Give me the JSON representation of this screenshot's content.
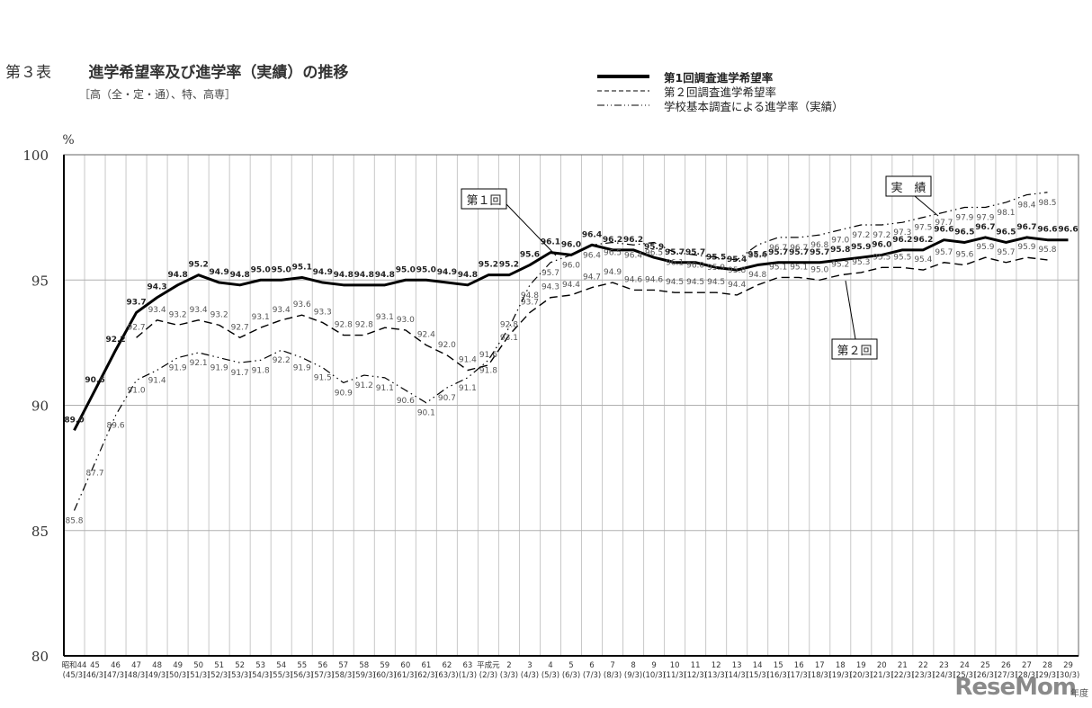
{
  "header": {
    "table_number": "第３表",
    "title": "進学希望率及び進学率（実績）の推移",
    "subtitle": "［高（全・定・通）、特、高専］"
  },
  "legend": [
    {
      "label": "第1回調査進学希望率",
      "style": "solid-bold"
    },
    {
      "label": "第２回調査進学希望率",
      "style": "dashed"
    },
    {
      "label": "学校基本調査による進学率（実績）",
      "style": "dash-dot"
    }
  ],
  "annotations": {
    "first_survey": "第１回",
    "second_survey": "第２回",
    "actual": "実　績"
  },
  "footer": {
    "logo": "ReseMom",
    "unit_label": "年度"
  },
  "chart_data": {
    "type": "line",
    "title": "進学希望率及び進学率（実績）の推移",
    "subtitle": "［高（全・定・通）、特、高専］",
    "xlabel": "年度",
    "ylabel": "%",
    "ylim": [
      80,
      100
    ],
    "yticks": [
      80,
      85,
      90,
      95,
      100
    ],
    "grid": true,
    "legend_position": "top-right",
    "categories": [
      {
        "top": "昭和44",
        "bottom": "(45/3)"
      },
      {
        "top": "45",
        "bottom": "(46/3)"
      },
      {
        "top": "46",
        "bottom": "(47/3)"
      },
      {
        "top": "47",
        "bottom": "(48/3)"
      },
      {
        "top": "48",
        "bottom": "(49/3)"
      },
      {
        "top": "49",
        "bottom": "(50/3)"
      },
      {
        "top": "50",
        "bottom": "(51/3)"
      },
      {
        "top": "51",
        "bottom": "(52/3)"
      },
      {
        "top": "52",
        "bottom": "(53/3)"
      },
      {
        "top": "53",
        "bottom": "(54/3)"
      },
      {
        "top": "54",
        "bottom": "(55/3)"
      },
      {
        "top": "55",
        "bottom": "(56/3)"
      },
      {
        "top": "56",
        "bottom": "(57/3)"
      },
      {
        "top": "57",
        "bottom": "(58/3)"
      },
      {
        "top": "58",
        "bottom": "(59/3)"
      },
      {
        "top": "59",
        "bottom": "(60/3)"
      },
      {
        "top": "60",
        "bottom": "(61/3)"
      },
      {
        "top": "61",
        "bottom": "(62/3)"
      },
      {
        "top": "62",
        "bottom": "(63/3)"
      },
      {
        "top": "63",
        "bottom": "(1/3)"
      },
      {
        "top": "平成元",
        "bottom": "(2/3)"
      },
      {
        "top": "2",
        "bottom": "(3/3)"
      },
      {
        "top": "3",
        "bottom": "(4/3)"
      },
      {
        "top": "4",
        "bottom": "(5/3)"
      },
      {
        "top": "5",
        "bottom": "(6/3)"
      },
      {
        "top": "6",
        "bottom": "(7/3)"
      },
      {
        "top": "7",
        "bottom": "(8/3)"
      },
      {
        "top": "8",
        "bottom": "(9/3)"
      },
      {
        "top": "9",
        "bottom": "(10/3)"
      },
      {
        "top": "10",
        "bottom": "(11/3)"
      },
      {
        "top": "11",
        "bottom": "(12/3)"
      },
      {
        "top": "12",
        "bottom": "(13/3)"
      },
      {
        "top": "13",
        "bottom": "(14/3)"
      },
      {
        "top": "14",
        "bottom": "(15/3)"
      },
      {
        "top": "15",
        "bottom": "(16/3)"
      },
      {
        "top": "16",
        "bottom": "(17/3)"
      },
      {
        "top": "17",
        "bottom": "(18/3)"
      },
      {
        "top": "18",
        "bottom": "(19/3)"
      },
      {
        "top": "19",
        "bottom": "(20/3)"
      },
      {
        "top": "20",
        "bottom": "(21/3)"
      },
      {
        "top": "21",
        "bottom": "(22/3)"
      },
      {
        "top": "22",
        "bottom": "(23/3)"
      },
      {
        "top": "23",
        "bottom": "(24/3)"
      },
      {
        "top": "24",
        "bottom": "(25/3)"
      },
      {
        "top": "25",
        "bottom": "(26/3)"
      },
      {
        "top": "26",
        "bottom": "(27/3)"
      },
      {
        "top": "27",
        "bottom": "(28/3)"
      },
      {
        "top": "28",
        "bottom": "(29/3)"
      },
      {
        "top": "29",
        "bottom": "(30/3)"
      }
    ],
    "series": [
      {
        "name": "第1回調査進学希望率",
        "style": "solid-bold",
        "start_index": 0,
        "values": [
          89.0,
          90.6,
          92.2,
          93.7,
          94.3,
          94.8,
          95.2,
          94.9,
          94.8,
          95.0,
          95.0,
          95.1,
          94.9,
          94.8,
          94.8,
          94.8,
          95.0,
          95.0,
          94.9,
          94.8,
          95.2,
          95.2,
          95.6,
          96.1,
          96.0,
          96.4,
          96.2,
          96.2,
          95.9,
          95.7,
          95.7,
          95.5,
          95.4,
          95.6,
          95.7,
          95.7,
          95.7,
          95.8,
          95.9,
          96.0,
          96.2,
          96.2,
          96.6,
          96.5,
          96.7,
          96.5,
          96.7,
          96.6,
          96.6
        ]
      },
      {
        "name": "第２回調査進学希望率",
        "style": "dashed",
        "start_index": 3,
        "values": [
          92.7,
          93.4,
          93.2,
          93.4,
          93.2,
          92.7,
          93.1,
          93.4,
          93.6,
          93.3,
          92.8,
          92.8,
          93.1,
          93.0,
          92.4,
          92.0,
          91.4,
          91.6,
          92.8,
          93.7,
          94.3,
          94.4,
          94.7,
          94.9,
          94.6,
          94.6,
          94.5,
          94.5,
          94.5,
          94.4,
          94.8,
          95.1,
          95.1,
          95.0,
          95.2,
          95.3,
          95.5,
          95.5,
          95.4,
          95.7,
          95.6,
          95.9,
          95.7,
          95.9,
          95.8
        ]
      },
      {
        "name": "学校基本調査による進学率（実績）",
        "style": "dash-dot",
        "start_index": 0,
        "values": [
          85.8,
          87.7,
          89.6,
          91.0,
          91.4,
          91.9,
          92.1,
          91.9,
          91.7,
          91.8,
          92.2,
          91.9,
          91.5,
          90.9,
          91.2,
          91.1,
          90.6,
          90.1,
          90.7,
          91.1,
          91.8,
          93.1,
          94.8,
          95.7,
          96.0,
          96.4,
          96.5,
          96.4,
          96.5,
          96.1,
          96.0,
          95.9,
          95.8,
          96.4,
          96.7,
          96.7,
          96.8,
          97.0,
          97.2,
          97.2,
          97.3,
          97.5,
          97.7,
          97.9,
          97.9,
          98.1,
          98.4,
          98.5
        ]
      }
    ]
  }
}
